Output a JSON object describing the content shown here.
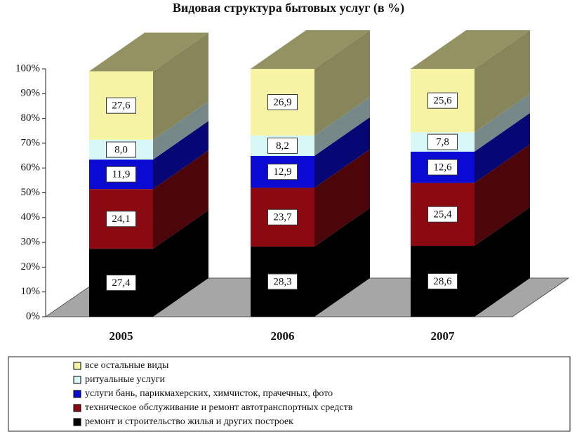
{
  "chart_data": {
    "type": "bar3d_stacked",
    "title": "Видовая структура бытовых услуг (в %)",
    "categories": [
      "2005",
      "2006",
      "2007"
    ],
    "series": [
      {
        "name": "ремонт и строительство жилья и других построек",
        "color": "#000000",
        "values": [
          27.4,
          28.3,
          28.6
        ],
        "value_labels": [
          "27,4",
          "28,3",
          "28,6"
        ]
      },
      {
        "name": "техническое обслуживание и ремонт автотранспортных средств",
        "color": "#8b0a12",
        "values": [
          24.1,
          23.7,
          25.4
        ],
        "value_labels": [
          "24,1",
          "23,7",
          "25,4"
        ]
      },
      {
        "name": "услуги бань, парикмахерских, химчисток, прачечных, фото",
        "color": "#0a0ad2",
        "values": [
          11.9,
          12.9,
          12.6
        ],
        "value_labels": [
          "11,9",
          "12,9",
          "12,6"
        ]
      },
      {
        "name": "ритуальные услуги",
        "color": "#d8f8f8",
        "values": [
          8.0,
          8.2,
          7.8
        ],
        "value_labels": [
          "8,0",
          "8,2",
          "7,8"
        ]
      },
      {
        "name": "все остальные виды",
        "color": "#f6f4a4",
        "values": [
          27.6,
          26.9,
          25.6
        ],
        "value_labels": [
          "27,6",
          "26,9",
          "25,6"
        ]
      }
    ],
    "ylim": [
      0,
      100
    ],
    "yticks": [
      {
        "value": 0,
        "label": "0%"
      },
      {
        "value": 10,
        "label": "10%"
      },
      {
        "value": 20,
        "label": "20%"
      },
      {
        "value": 30,
        "label": "30%"
      },
      {
        "value": 40,
        "label": "40%"
      },
      {
        "value": 50,
        "label": "50%"
      },
      {
        "value": 60,
        "label": "60%"
      },
      {
        "value": 70,
        "label": "70%"
      },
      {
        "value": 80,
        "label": "80%"
      },
      {
        "value": 90,
        "label": "90%"
      },
      {
        "value": 100,
        "label": "100%"
      }
    ],
    "grid": false
  }
}
